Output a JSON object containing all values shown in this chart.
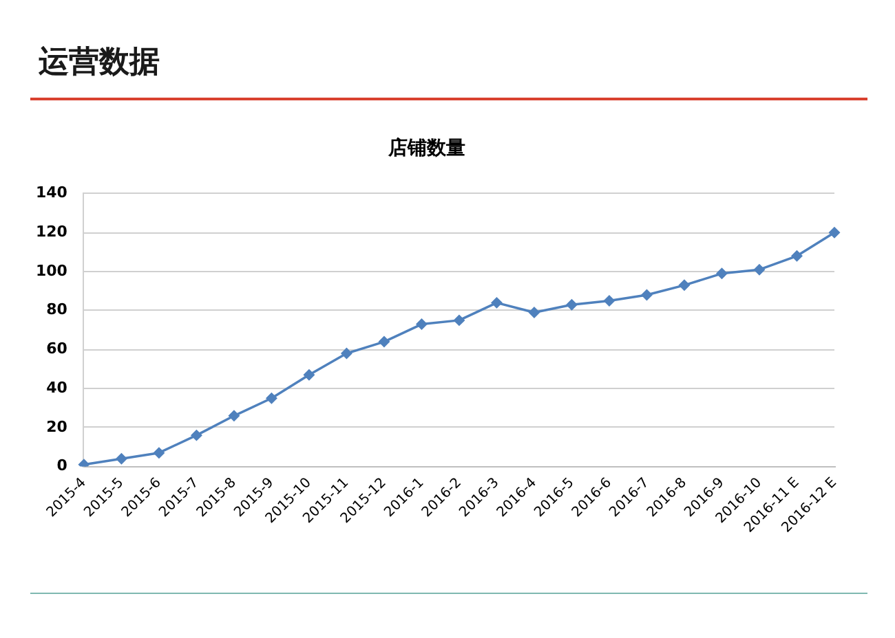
{
  "chart_data": {
    "type": "line",
    "title": "运营数据",
    "subtitle": "店铺数量",
    "categories": [
      "2015-4",
      "2015-5",
      "2015-6",
      "2015-7",
      "2015-8",
      "2015-9",
      "2015-10",
      "2015-11",
      "2015-12",
      "2016-1",
      "2016-2",
      "2016-3",
      "2016-4",
      "2016-5",
      "2016-6",
      "2016-7",
      "2016-8",
      "2016-9",
      "2016-10",
      "2016-11 E",
      "2016-12 E"
    ],
    "values": [
      1,
      4,
      7,
      16,
      26,
      35,
      47,
      58,
      64,
      73,
      75,
      84,
      79,
      83,
      85,
      88,
      93,
      99,
      101,
      108,
      120
    ],
    "color": "#4f81bd",
    "ylim": [
      0,
      140
    ],
    "yticks": [
      0,
      20,
      40,
      60,
      80,
      100,
      120,
      140
    ],
    "grid": "y",
    "marker": "diamond",
    "line_style": "solid"
  }
}
